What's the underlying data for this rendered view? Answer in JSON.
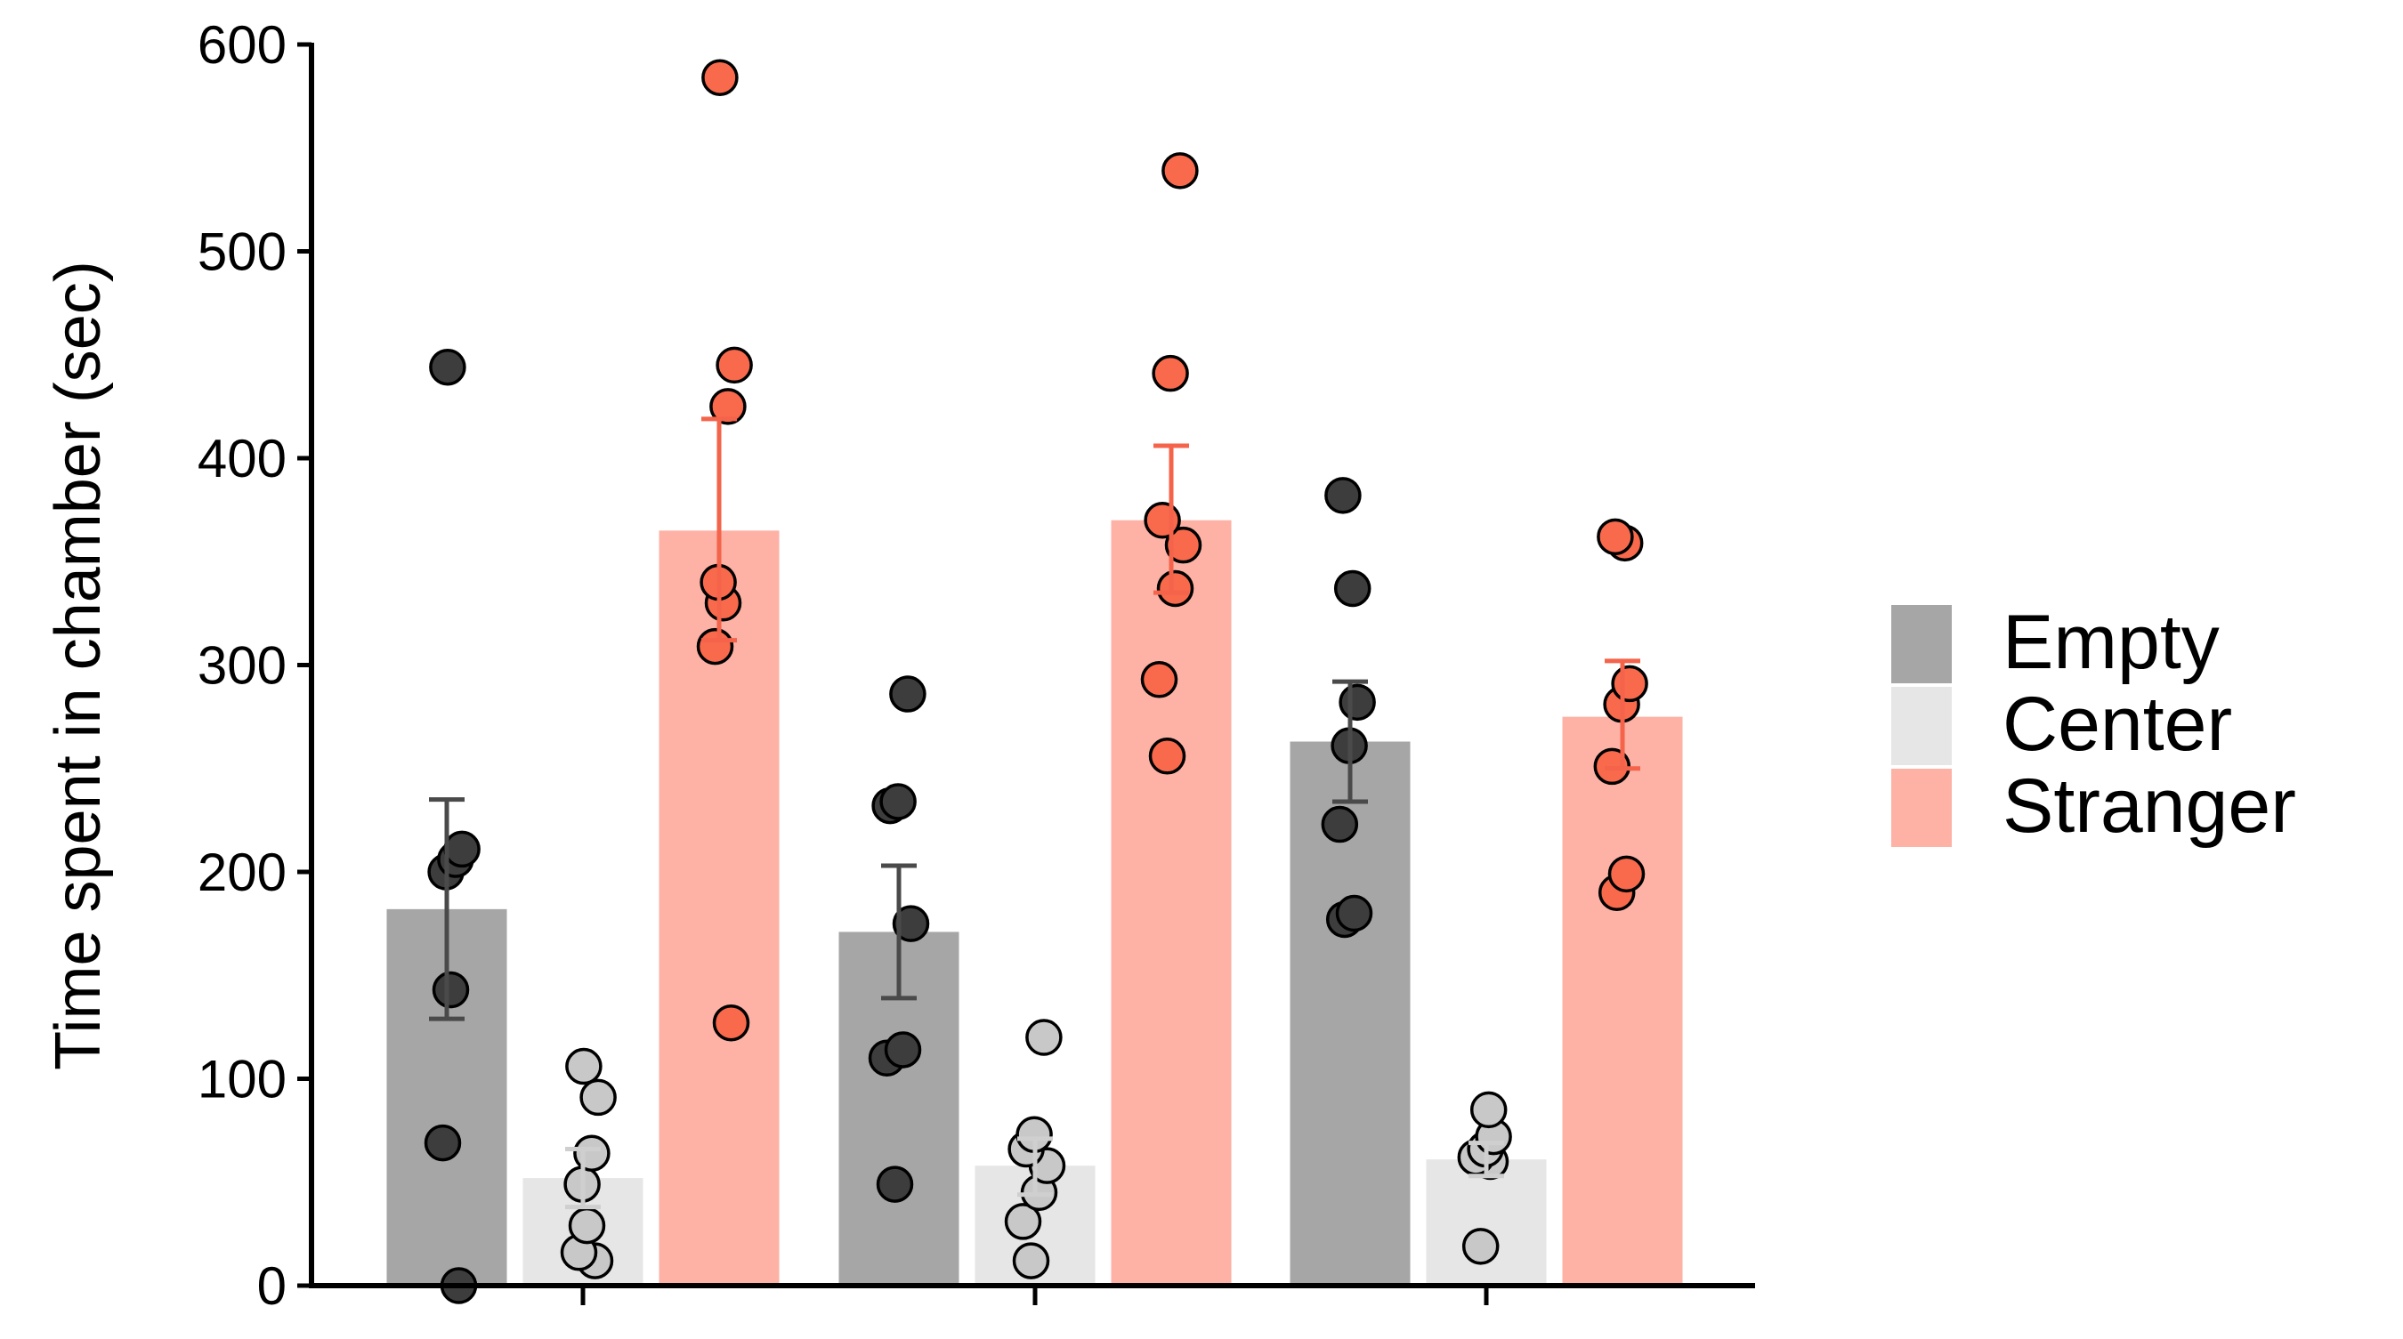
{
  "chart_data": {
    "type": "bar",
    "title": "",
    "xlabel": "",
    "ylabel": "Time spent in chamber (sec)",
    "ylim": [
      0,
      600
    ],
    "yticks": [
      "0",
      "100",
      "200",
      "300",
      "400",
      "500",
      "600"
    ],
    "categories": [
      "",
      "",
      ""
    ],
    "legend_position": "right",
    "grid": false,
    "series": [
      {
        "name": "Empty",
        "color": "#a6a6a6",
        "point_color": "#3d3d3d",
        "error_color": "#4a4a4a",
        "values": [
          182,
          171,
          263
        ],
        "error": [
          [
            129,
            235
          ],
          [
            139,
            203
          ],
          [
            234,
            292
          ]
        ],
        "points": [
          [
            0,
            69,
            143,
            200,
            206,
            211,
            444
          ],
          [
            49,
            110,
            114,
            175,
            232,
            234,
            286
          ],
          [
            177,
            180,
            223,
            261,
            282,
            337,
            382
          ]
        ]
      },
      {
        "name": "Center",
        "color": "#e6e6e6",
        "point_color": "#c8c8c8",
        "error_color": "#cfcfcf",
        "values": [
          52,
          58,
          61
        ],
        "error": [
          [
            38,
            66
          ],
          [
            44,
            71
          ],
          [
            53,
            69
          ]
        ],
        "points": [
          [
            12,
            16,
            29,
            49,
            64,
            91,
            106
          ],
          [
            12,
            31,
            45,
            58,
            66,
            73,
            120
          ],
          [
            19,
            60,
            62,
            66,
            72,
            85
          ]
        ]
      },
      {
        "name": "Stranger",
        "color": "#fdb2a5",
        "point_color": "#f96a4d",
        "error_color": "#f4634a",
        "values": [
          365,
          370,
          275
        ],
        "error": [
          [
            312,
            419
          ],
          [
            335,
            406
          ],
          [
            250,
            302
          ]
        ],
        "points": [
          [
            127,
            309,
            330,
            340,
            425,
            445,
            584
          ],
          [
            256,
            293,
            337,
            358,
            370,
            441,
            539
          ],
          [
            190,
            199,
            251,
            281,
            291,
            359,
            362
          ]
        ]
      }
    ]
  }
}
